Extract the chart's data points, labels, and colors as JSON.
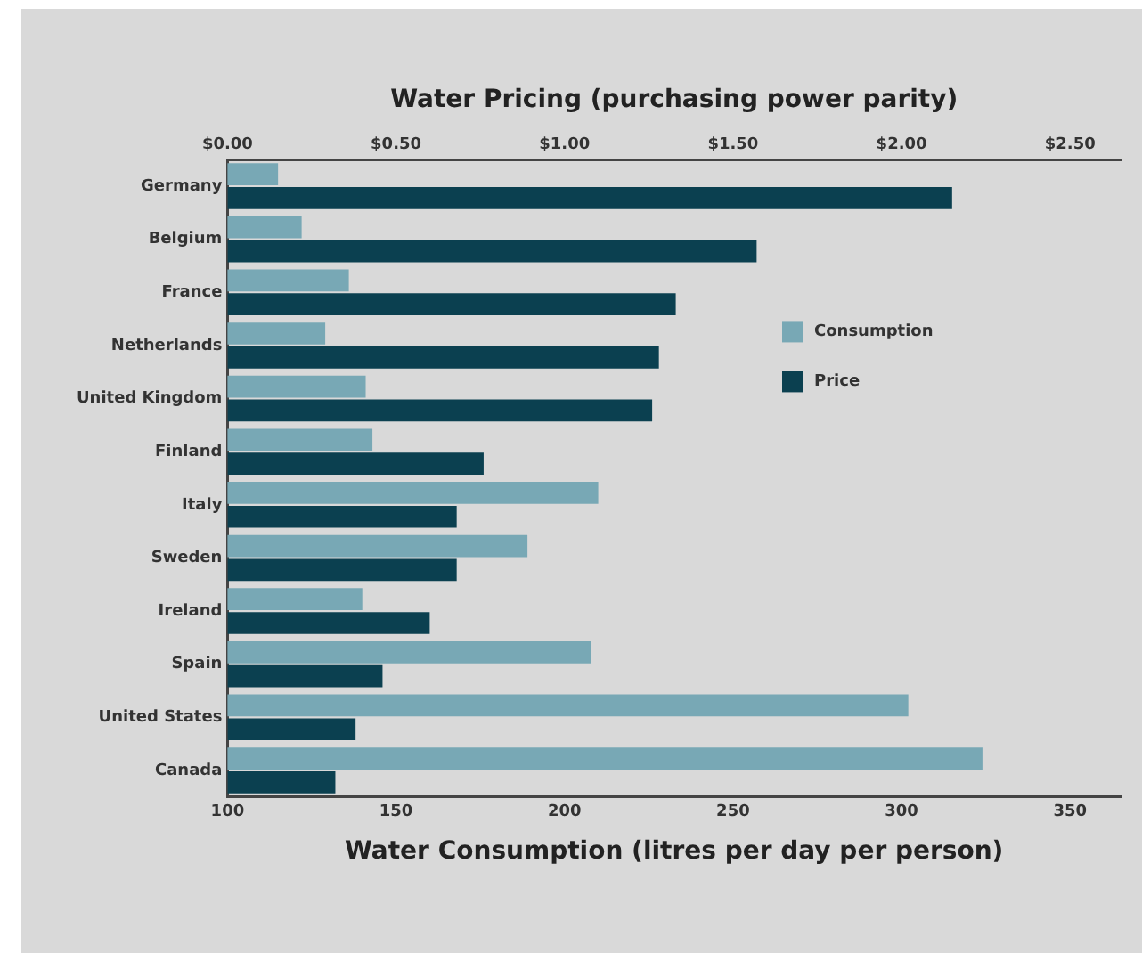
{
  "chart_data": {
    "type": "bar",
    "orientation": "horizontal",
    "xlabel": "Water Consumption (litres per day per person)",
    "x2label": "Water Pricing (purchasing power parity)",
    "categories": [
      "Germany",
      "Belgium",
      "France",
      "Netherlands",
      "United Kingdom",
      "Finland",
      "Italy",
      "Sweden",
      "Ireland",
      "Spain",
      "United States",
      "Canada"
    ],
    "series": [
      {
        "name": "Consumption",
        "color": "#78a8b5",
        "values": [
          115,
          122,
          136,
          129,
          141,
          143,
          210,
          189,
          140,
          208,
          302,
          324
        ]
      },
      {
        "name": "Price",
        "color": "#0b4050",
        "axis": "x2",
        "values": [
          2.15,
          1.57,
          1.33,
          1.28,
          1.26,
          0.76,
          0.68,
          0.68,
          0.6,
          0.46,
          0.38,
          0.32
        ]
      }
    ],
    "xlim": [
      100,
      365
    ],
    "xticks": [
      100,
      150,
      200,
      250,
      300,
      350
    ],
    "x2lim": [
      0,
      2.65
    ],
    "x2ticks": [
      {
        "value": 0,
        "label": "$0.00"
      },
      {
        "value": 0.5,
        "label": "$0.50"
      },
      {
        "value": 1,
        "label": "$1.00"
      },
      {
        "value": 1.5,
        "label": "$1.50"
      },
      {
        "value": 2,
        "label": "$2.00"
      },
      {
        "value": 2.5,
        "label": "$2.50"
      }
    ],
    "grid": false,
    "legend": "right"
  }
}
